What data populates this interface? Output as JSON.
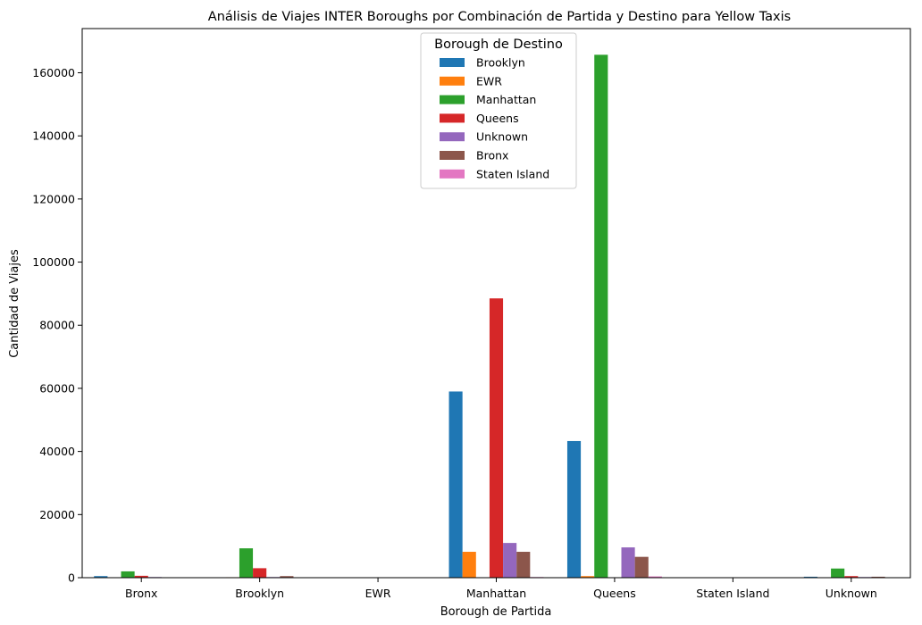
{
  "chart_data": {
    "type": "bar",
    "title": "Análisis de Viajes INTER Boroughs por Combinación de Partida y Destino para Yellow Taxis",
    "xlabel": "Borough de Partida",
    "ylabel": "Cantidad de Viajes",
    "ylim": [
      0,
      174000
    ],
    "yticks": [
      0,
      20000,
      40000,
      60000,
      80000,
      100000,
      120000,
      140000,
      160000
    ],
    "grid": false,
    "legend": {
      "title": "Borough de Destino",
      "placement": "upper-center"
    },
    "categories": [
      "Bronx",
      "Brooklyn",
      "EWR",
      "Manhattan",
      "Queens",
      "Staten Island",
      "Unknown"
    ],
    "series": [
      {
        "name": "Brooklyn",
        "color": "#1f77b4",
        "values": [
          500,
          0,
          0,
          59000,
          43300,
          0,
          300
        ]
      },
      {
        "name": "EWR",
        "color": "#ff7f0e",
        "values": [
          0,
          150,
          0,
          8200,
          500,
          0,
          0
        ]
      },
      {
        "name": "Manhattan",
        "color": "#2ca02c",
        "values": [
          2000,
          9300,
          0,
          0,
          165700,
          0,
          2900
        ]
      },
      {
        "name": "Queens",
        "color": "#d62728",
        "values": [
          600,
          3000,
          0,
          88500,
          0,
          0,
          500
        ]
      },
      {
        "name": "Unknown",
        "color": "#9467bd",
        "values": [
          200,
          200,
          0,
          11000,
          9600,
          0,
          200
        ]
      },
      {
        "name": "Bronx",
        "color": "#8c564b",
        "values": [
          0,
          500,
          0,
          8200,
          6600,
          0,
          300
        ]
      },
      {
        "name": "Staten Island",
        "color": "#e377c2",
        "values": [
          0,
          0,
          0,
          200,
          400,
          0,
          0
        ]
      }
    ]
  }
}
